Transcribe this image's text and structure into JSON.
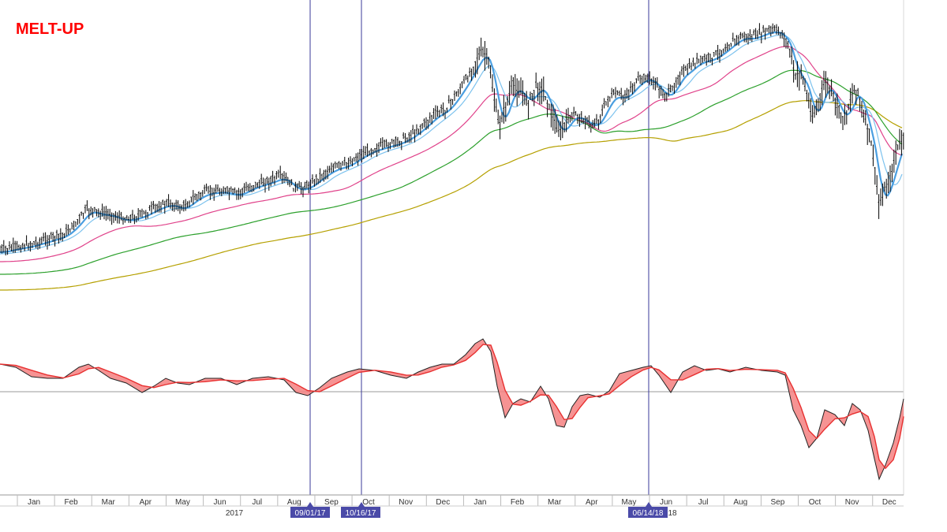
{
  "title": "MELT-UP",
  "colors": {
    "title": "#ff0000",
    "price_bars": "#000000",
    "ema_fast": "#4a9ee0",
    "ema_slow": "#7cc2ee",
    "ma_50": "#e0428a",
    "ma_100": "#2ca02c",
    "ma_200": "#b5a000",
    "osc_line": "#222222",
    "osc_signal": "#e83030",
    "osc_fill_neg": "#f48080",
    "osc_fill_pos": "#d0d0d0",
    "marker_line": "#3a3a9a",
    "marker_box": "#4a4aa8"
  },
  "chart_data": [
    {
      "type": "line",
      "panel": "price",
      "x_ticks": [
        "Jan",
        "Feb",
        "Mar",
        "Apr",
        "May",
        "Jun",
        "Jul",
        "Aug",
        "Sep",
        "Oct",
        "Nov",
        "Dec",
        "Jan",
        "Feb",
        "Mar",
        "Apr",
        "May",
        "Jun",
        "Jul",
        "Aug",
        "Sep",
        "Oct",
        "Nov",
        "Dec"
      ],
      "year_labels": [
        "2017",
        "18"
      ],
      "markers": [
        "09/01/17",
        "10/16/17",
        "06/14/18"
      ],
      "series_shape_note": "",
      "price_path": [
        [
          "2017-01",
          312
        ],
        [
          "2017-02",
          300
        ],
        [
          "2017-03",
          268
        ],
        [
          "2017-04",
          278
        ],
        [
          "2017-05",
          262
        ],
        [
          "2017-06",
          244
        ],
        [
          "2017-07",
          238
        ],
        [
          "2017-08",
          228
        ],
        [
          "2017-09",
          236
        ],
        [
          "2017-10",
          210
        ],
        [
          "2017-11",
          186
        ],
        [
          "2017-12",
          150
        ],
        [
          "2018-01",
          66
        ],
        [
          "2018-02",
          150
        ],
        [
          "2018-03",
          122
        ],
        [
          "2018-04",
          172
        ],
        [
          "2018-05",
          140
        ],
        [
          "2018-06",
          100
        ],
        [
          "2018-07",
          86
        ],
        [
          "2018-08",
          56
        ],
        [
          "2018-09",
          38
        ],
        [
          "2018-10",
          110
        ],
        [
          "2018-11",
          150
        ],
        [
          "2018-12",
          260
        ]
      ]
    },
    {
      "type": "line",
      "panel": "oscillator",
      "zero_line": true
    }
  ]
}
